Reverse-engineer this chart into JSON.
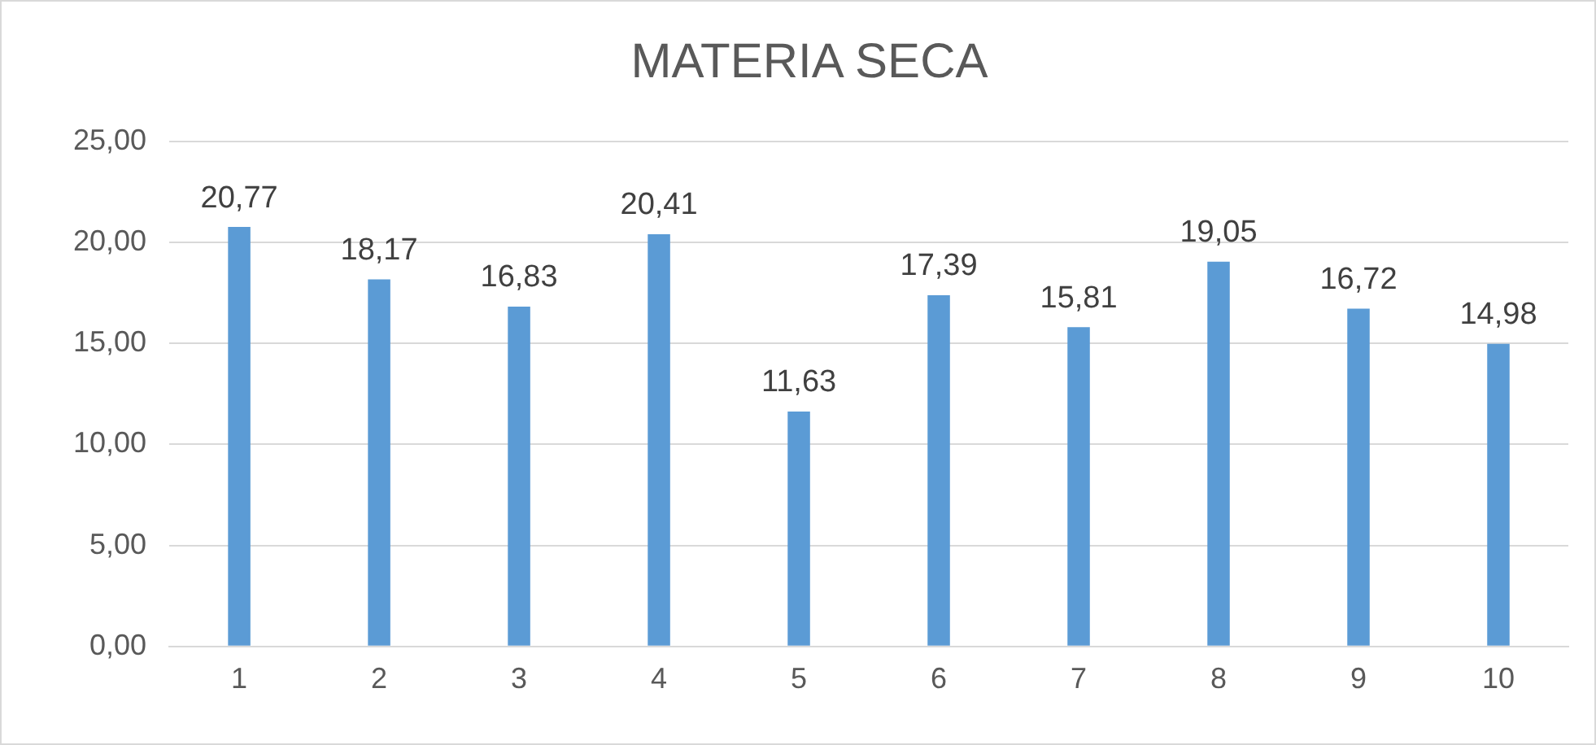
{
  "chart_data": {
    "type": "bar",
    "title": "MATERIA SECA",
    "categories": [
      "1",
      "2",
      "3",
      "4",
      "5",
      "6",
      "7",
      "8",
      "9",
      "10"
    ],
    "values": [
      20.77,
      18.17,
      16.83,
      20.41,
      11.63,
      17.39,
      15.81,
      19.05,
      16.72,
      14.98
    ],
    "value_labels": [
      "20,77",
      "18,17",
      "16,83",
      "20,41",
      "11,63",
      "17,39",
      "15,81",
      "19,05",
      "16,72",
      "14,98"
    ],
    "color": "#5b9bd5",
    "ylim": [
      0,
      25
    ],
    "yticks": [
      {
        "value": 0,
        "label": "0,00"
      },
      {
        "value": 5,
        "label": "5,00"
      },
      {
        "value": 10,
        "label": "10,00"
      },
      {
        "value": 15,
        "label": "15,00"
      },
      {
        "value": 20,
        "label": "20,00"
      },
      {
        "value": 25,
        "label": "25,00"
      }
    ],
    "grid": "y",
    "legend": false
  }
}
